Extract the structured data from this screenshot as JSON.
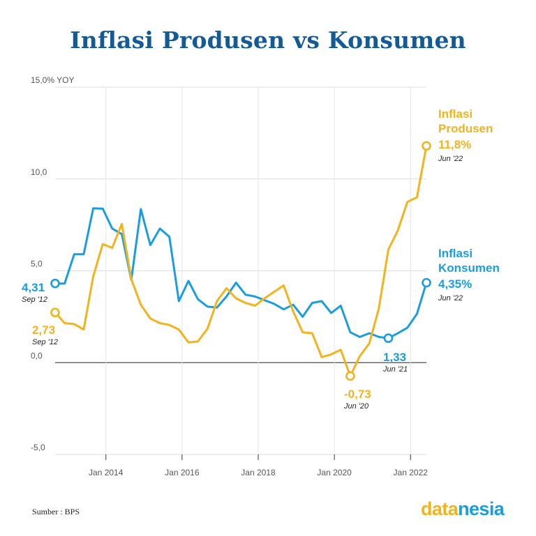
{
  "chart_data": {
    "type": "line",
    "title": "Inflasi Produsen vs Konsumen",
    "ylabel": "YOY",
    "ylim": [
      -5,
      15
    ],
    "y_ticks": [
      {
        "value": 15,
        "label": "15,0% YOY"
      },
      {
        "value": 10,
        "label": "10,0"
      },
      {
        "value": 5,
        "label": "5,0"
      },
      {
        "value": 0,
        "label": "0,0"
      },
      {
        "value": -5,
        "label": "-5,0"
      }
    ],
    "xlim": [
      2012.667,
      2022.417
    ],
    "x_ticks": [
      {
        "value": 2014,
        "label": "Jan 2014"
      },
      {
        "value": 2016,
        "label": "Jan 2016"
      },
      {
        "value": 2018,
        "label": "Jan 2018"
      },
      {
        "value": 2020,
        "label": "Jan 2020"
      },
      {
        "value": 2022,
        "label": "Jan 2022"
      }
    ],
    "colors": {
      "konsumen": "#1a9de0",
      "produsen": "#f2b31d",
      "zero_line": "#222222",
      "grid": "#dddddd"
    },
    "series": [
      {
        "name": "Inflasi Konsumen",
        "color": "#1a9de0",
        "x": [
          2012.667,
          2012.917,
          2013.167,
          2013.417,
          2013.667,
          2013.917,
          2014.167,
          2014.417,
          2014.667,
          2014.917,
          2015.167,
          2015.417,
          2015.667,
          2015.917,
          2016.167,
          2016.417,
          2016.667,
          2016.917,
          2017.167,
          2017.417,
          2017.667,
          2017.917,
          2018.167,
          2018.417,
          2018.667,
          2018.917,
          2019.167,
          2019.417,
          2019.667,
          2019.917,
          2020.167,
          2020.417,
          2020.667,
          2020.917,
          2021.167,
          2021.417,
          2021.667,
          2021.917,
          2022.167,
          2022.417
        ],
        "values": [
          4.31,
          4.3,
          5.9,
          5.9,
          8.4,
          8.38,
          7.3,
          7.0,
          4.5,
          8.36,
          6.4,
          7.3,
          6.85,
          3.35,
          4.45,
          3.45,
          3.05,
          3.0,
          3.6,
          4.35,
          3.7,
          3.6,
          3.4,
          3.2,
          2.9,
          3.15,
          2.5,
          3.25,
          3.35,
          2.7,
          3.1,
          1.65,
          1.4,
          1.6,
          1.4,
          1.33,
          1.6,
          1.9,
          2.65,
          4.35
        ]
      },
      {
        "name": "Inflasi Produsen",
        "color": "#f2b31d",
        "x": [
          2012.667,
          2012.917,
          2013.167,
          2013.417,
          2013.667,
          2013.917,
          2014.167,
          2014.417,
          2014.667,
          2014.917,
          2015.167,
          2015.417,
          2015.667,
          2015.917,
          2016.167,
          2016.417,
          2016.667,
          2016.917,
          2017.167,
          2017.417,
          2017.667,
          2017.917,
          2018.167,
          2018.417,
          2018.667,
          2018.917,
          2019.167,
          2019.417,
          2019.667,
          2019.917,
          2020.167,
          2020.417,
          2020.667,
          2020.917,
          2021.167,
          2021.417,
          2021.667,
          2021.917,
          2022.167,
          2022.417
        ],
        "values": [
          2.73,
          2.15,
          2.1,
          1.8,
          4.7,
          6.45,
          6.25,
          7.55,
          4.55,
          3.15,
          2.4,
          2.15,
          2.05,
          1.8,
          1.1,
          1.15,
          1.85,
          3.35,
          4.05,
          3.5,
          3.25,
          3.1,
          3.5,
          3.85,
          4.2,
          2.8,
          1.65,
          1.6,
          0.3,
          0.45,
          0.7,
          -0.73,
          0.35,
          1.05,
          2.95,
          6.15,
          7.2,
          8.75,
          9.0,
          11.8
        ]
      }
    ],
    "annotations": [
      {
        "value_text": "4,31",
        "date_text": "Sep '12",
        "series": "konsumen"
      },
      {
        "value_text": "2,73",
        "date_text": "Sep '12",
        "series": "produsen"
      },
      {
        "value_text": "-0,73",
        "date_text": "Jun '20",
        "series": "produsen"
      },
      {
        "value_text": "1,33",
        "date_text": "Jun '21",
        "series": "konsumen"
      }
    ],
    "end_labels": [
      {
        "lines": [
          "Inflasi",
          "Produsen",
          "11,8%"
        ],
        "date_text": "Jun '22",
        "series": "produsen"
      },
      {
        "lines": [
          "Inflasi",
          "Konsumen",
          "4,35%"
        ],
        "date_text": "Jun '22",
        "series": "konsumen"
      }
    ]
  },
  "footer": {
    "source": "Sumber : BPS",
    "brand_part1": "data",
    "brand_part2": "nesia",
    "brand_color1": "#f2b31d",
    "brand_color2": "#1a9de0"
  }
}
